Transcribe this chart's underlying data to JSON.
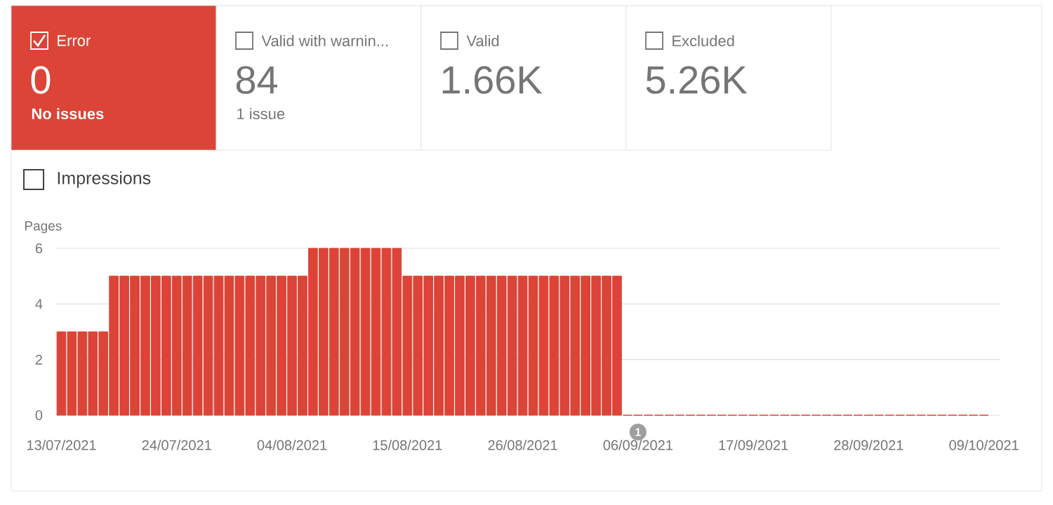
{
  "chart_data": [
    {
      "type": "other",
      "categories": [
        "Error",
        "Valid with warnin...",
        "Valid",
        "Excluded"
      ],
      "values": [
        0,
        84,
        1660,
        5260
      ],
      "value_labels": [
        "0",
        "84",
        "1.66K",
        "5.26K"
      ],
      "colors": [
        "#db4437",
        "#ffffff",
        "#ffffff",
        "#ffffff"
      ],
      "annotations": [
        "No issues",
        "1 issue"
      ]
    },
    {
      "type": "bar",
      "ylabel": "Pages",
      "annotations": [
        "Impressions",
        {
          "text": "1",
          "x": "2021-09-06",
          "y": 0
        }
      ],
      "color": "#db4437",
      "grid": "y",
      "x": [
        "2021-07-13",
        "2021-07-14",
        "2021-07-15",
        "2021-07-16",
        "2021-07-17",
        "2021-07-18",
        "2021-07-19",
        "2021-07-20",
        "2021-07-21",
        "2021-07-22",
        "2021-07-23",
        "2021-07-24",
        "2021-07-25",
        "2021-07-26",
        "2021-07-27",
        "2021-07-28",
        "2021-07-29",
        "2021-07-30",
        "2021-07-31",
        "2021-08-01",
        "2021-08-02",
        "2021-08-03",
        "2021-08-04",
        "2021-08-05",
        "2021-08-06",
        "2021-08-07",
        "2021-08-08",
        "2021-08-09",
        "2021-08-10",
        "2021-08-11",
        "2021-08-12",
        "2021-08-13",
        "2021-08-14",
        "2021-08-15",
        "2021-08-16",
        "2021-08-17",
        "2021-08-18",
        "2021-08-19",
        "2021-08-20",
        "2021-08-21",
        "2021-08-22",
        "2021-08-23",
        "2021-08-24",
        "2021-08-25",
        "2021-08-26",
        "2021-08-27",
        "2021-08-28",
        "2021-08-29",
        "2021-08-30",
        "2021-08-31",
        "2021-09-01",
        "2021-09-02",
        "2021-09-03",
        "2021-09-04",
        "2021-09-05",
        "2021-09-06",
        "2021-09-07",
        "2021-09-08",
        "2021-09-09",
        "2021-09-10",
        "2021-09-11",
        "2021-09-12",
        "2021-09-13",
        "2021-09-14",
        "2021-09-15",
        "2021-09-16",
        "2021-09-17",
        "2021-09-18",
        "2021-09-19",
        "2021-09-20",
        "2021-09-21",
        "2021-09-22",
        "2021-09-23",
        "2021-09-24",
        "2021-09-25",
        "2021-09-26",
        "2021-09-27",
        "2021-09-28",
        "2021-09-29",
        "2021-09-30",
        "2021-10-01",
        "2021-10-02",
        "2021-10-03",
        "2021-10-04",
        "2021-10-05",
        "2021-10-06",
        "2021-10-07",
        "2021-10-08",
        "2021-10-09"
      ],
      "values": [
        3,
        3,
        3,
        3,
        3,
        5,
        5,
        5,
        5,
        5,
        5,
        5,
        5,
        5,
        5,
        5,
        5,
        5,
        5,
        5,
        5,
        5,
        5,
        5,
        6,
        6,
        6,
        6,
        6,
        6,
        6,
        6,
        6,
        5,
        5,
        5,
        5,
        5,
        5,
        5,
        5,
        5,
        5,
        5,
        5,
        5,
        5,
        5,
        5,
        5,
        5,
        5,
        5,
        5,
        0,
        0,
        0,
        0,
        0,
        0,
        0,
        0,
        0,
        0,
        0,
        0,
        0,
        0,
        0,
        0,
        0,
        0,
        0,
        0,
        0,
        0,
        0,
        0,
        0,
        0,
        0,
        0,
        0,
        0,
        0,
        0,
        0,
        0,
        0
      ],
      "xlim": [
        "2021-07-12T12:00",
        "2021-10-10T12:00"
      ],
      "ylim": [
        0,
        6
      ],
      "yticks": [
        0,
        2,
        4,
        6
      ],
      "xticks": [
        {
          "value": "2021-07-13",
          "label": "13/07/2021"
        },
        {
          "value": "2021-07-24",
          "label": "24/07/2021"
        },
        {
          "value": "2021-08-04",
          "label": "04/08/2021"
        },
        {
          "value": "2021-08-15",
          "label": "15/08/2021"
        },
        {
          "value": "2021-08-26",
          "label": "26/08/2021"
        },
        {
          "value": "2021-09-06",
          "label": "06/09/2021"
        },
        {
          "value": "2021-09-17",
          "label": "17/09/2021"
        },
        {
          "value": "2021-09-28",
          "label": "28/09/2021"
        },
        {
          "value": "2021-10-09",
          "label": "09/10/2021"
        }
      ]
    }
  ]
}
